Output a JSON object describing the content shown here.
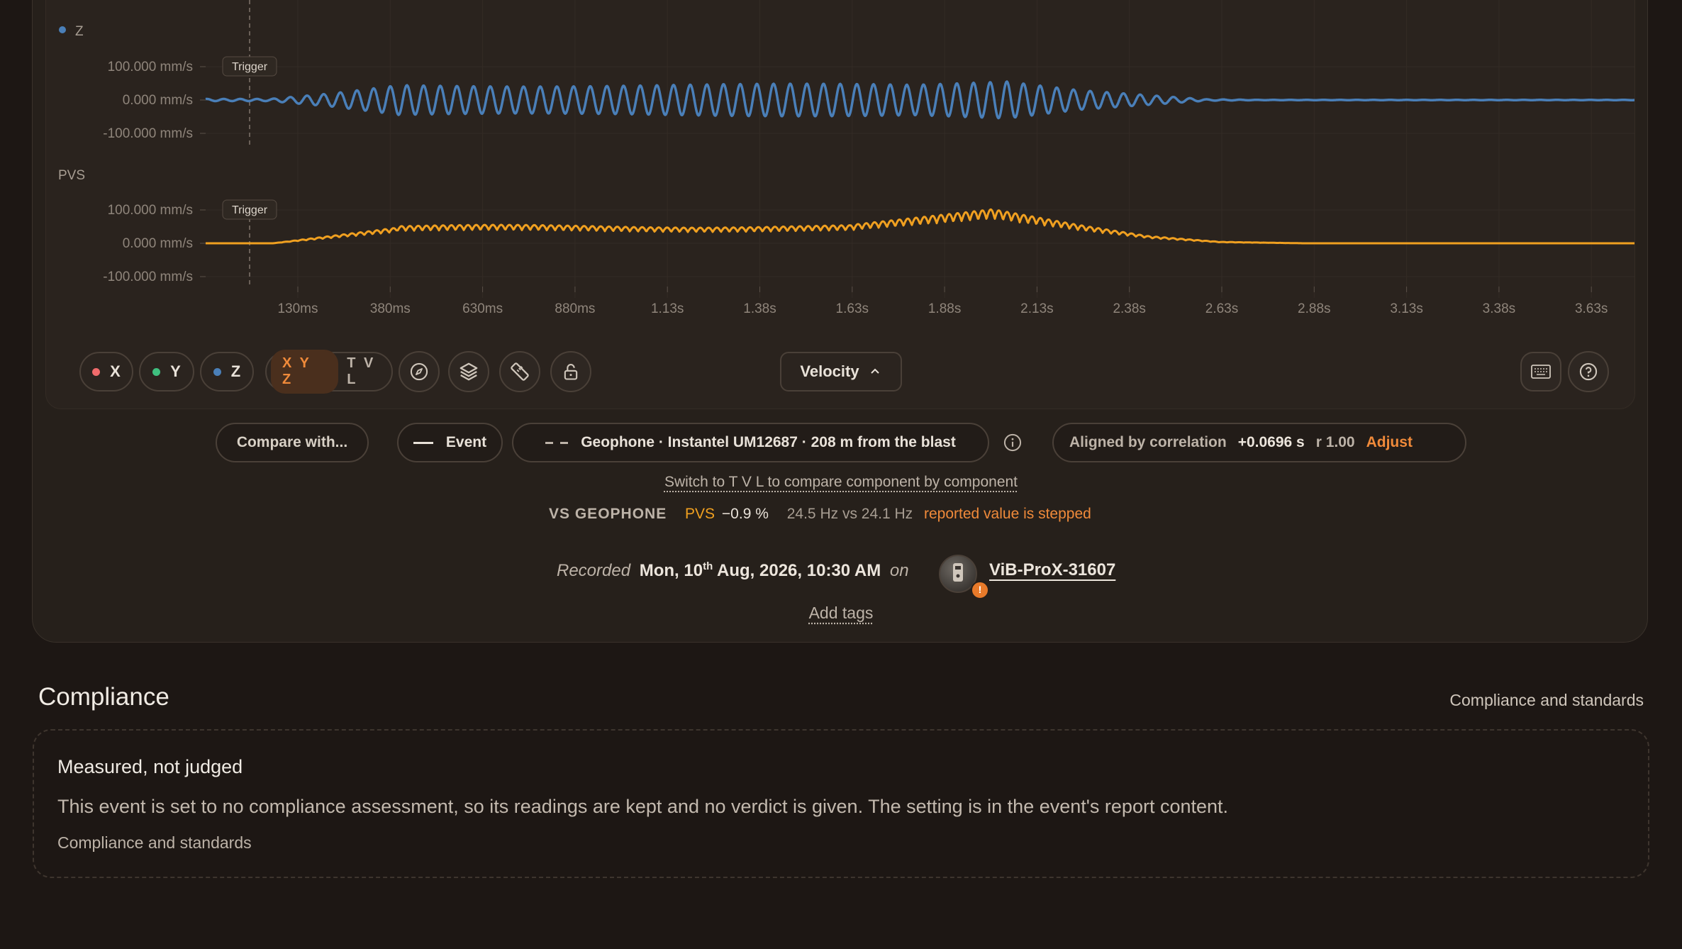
{
  "chart": {
    "z_label": "Z",
    "pvs_label": "PVS",
    "trigger_label": "Trigger",
    "y_ticks": [
      "100.000 mm/s",
      "0.000 mm/s",
      "-100.000 mm/s"
    ],
    "x_ticks": [
      "130ms",
      "380ms",
      "630ms",
      "880ms",
      "1.13s",
      "1.38s",
      "1.63s",
      "1.88s",
      "2.13s",
      "2.38s",
      "2.63s",
      "2.88s",
      "3.13s",
      "3.38s",
      "3.63s"
    ]
  },
  "chart_data": [
    {
      "type": "line",
      "title": "Z",
      "series": [
        {
          "name": "Z",
          "color": "#4a7fb8"
        }
      ],
      "ylim": [
        -100,
        100
      ],
      "x_ticks": [
        "130ms",
        "380ms",
        "630ms",
        "880ms",
        "1.13s",
        "1.38s",
        "1.63s",
        "1.88s",
        "2.13s",
        "2.38s",
        "2.63s",
        "2.88s",
        "3.13s",
        "3.38s",
        "3.63s"
      ]
    },
    {
      "type": "line",
      "title": "PVS",
      "series": [
        {
          "name": "PVS",
          "color": "#f0a020"
        }
      ],
      "ylim": [
        -100,
        100
      ],
      "x_ticks": [
        "130ms",
        "380ms",
        "630ms",
        "880ms",
        "1.13s",
        "1.38s",
        "1.63s",
        "1.88s",
        "2.13s",
        "2.38s",
        "2.63s",
        "2.88s",
        "3.13s",
        "3.38s",
        "3.63s"
      ]
    }
  ],
  "toolbar": {
    "x_label": "X",
    "y_label": "Y",
    "z_label": "Z",
    "mode_xyz": "X Y Z",
    "mode_tvl": "T V L",
    "velocity_label": "Velocity",
    "colors": {
      "x": "#f06b6b",
      "y": "#3fbf7f",
      "z": "#4a7fb8"
    }
  },
  "compare": {
    "compare_button": "Compare with...",
    "event_label": "Event",
    "geophone_label": "Geophone · Instantel UM12687 · 208 m from the blast",
    "aligned_label": "Aligned by correlation",
    "aligned_offset": "+0.0696 s",
    "aligned_r": "r 1.00",
    "adjust_label": "Adjust",
    "switch_link": "Switch to T V L to compare component by component"
  },
  "vs": {
    "label": "VS GEOPHONE",
    "pvs": "PVS",
    "pvs_value": "−0.9 %",
    "freq": "24.5 Hz vs 24.1 Hz",
    "stepped": "reported value is stepped"
  },
  "recorded": {
    "prefix": "Recorded",
    "date_main": "Mon, 10",
    "date_sup": "th",
    "date_rest": " Aug, 2026, 10:30 AM",
    "on": "on",
    "device": "ViB-ProX-31607",
    "badge": "!"
  },
  "add_tags": "Add tags",
  "compliance": {
    "heading": "Compliance",
    "link": "Compliance and standards",
    "card_title": "Measured, not judged",
    "card_text": "This event is set to no compliance assessment, so its readings are kept and no verdict is given. The setting is in the event's report content.",
    "card_link": "Compliance and standards"
  }
}
